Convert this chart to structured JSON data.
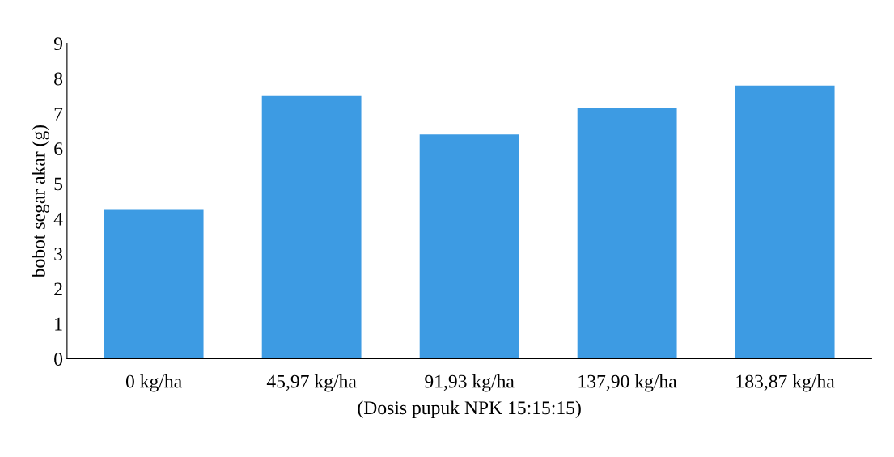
{
  "chart_data": {
    "type": "bar",
    "xlabel": "(Dosis pupuk NPK 15:15:15)",
    "ylabel": "bobot segar akar (g)",
    "categories": [
      "0 kg/ha",
      "45,97 kg/ha",
      "91,93 kg/ha",
      "137,90 kg/ha",
      "183,87 kg/ha"
    ],
    "values": [
      4.25,
      7.5,
      6.4,
      7.15,
      7.8
    ],
    "color": "#3d9be3",
    "ylim": [
      0,
      9
    ],
    "yticks": [
      0,
      1,
      2,
      3,
      4,
      5,
      6,
      7,
      8,
      9
    ],
    "grid": false,
    "legend": false
  }
}
